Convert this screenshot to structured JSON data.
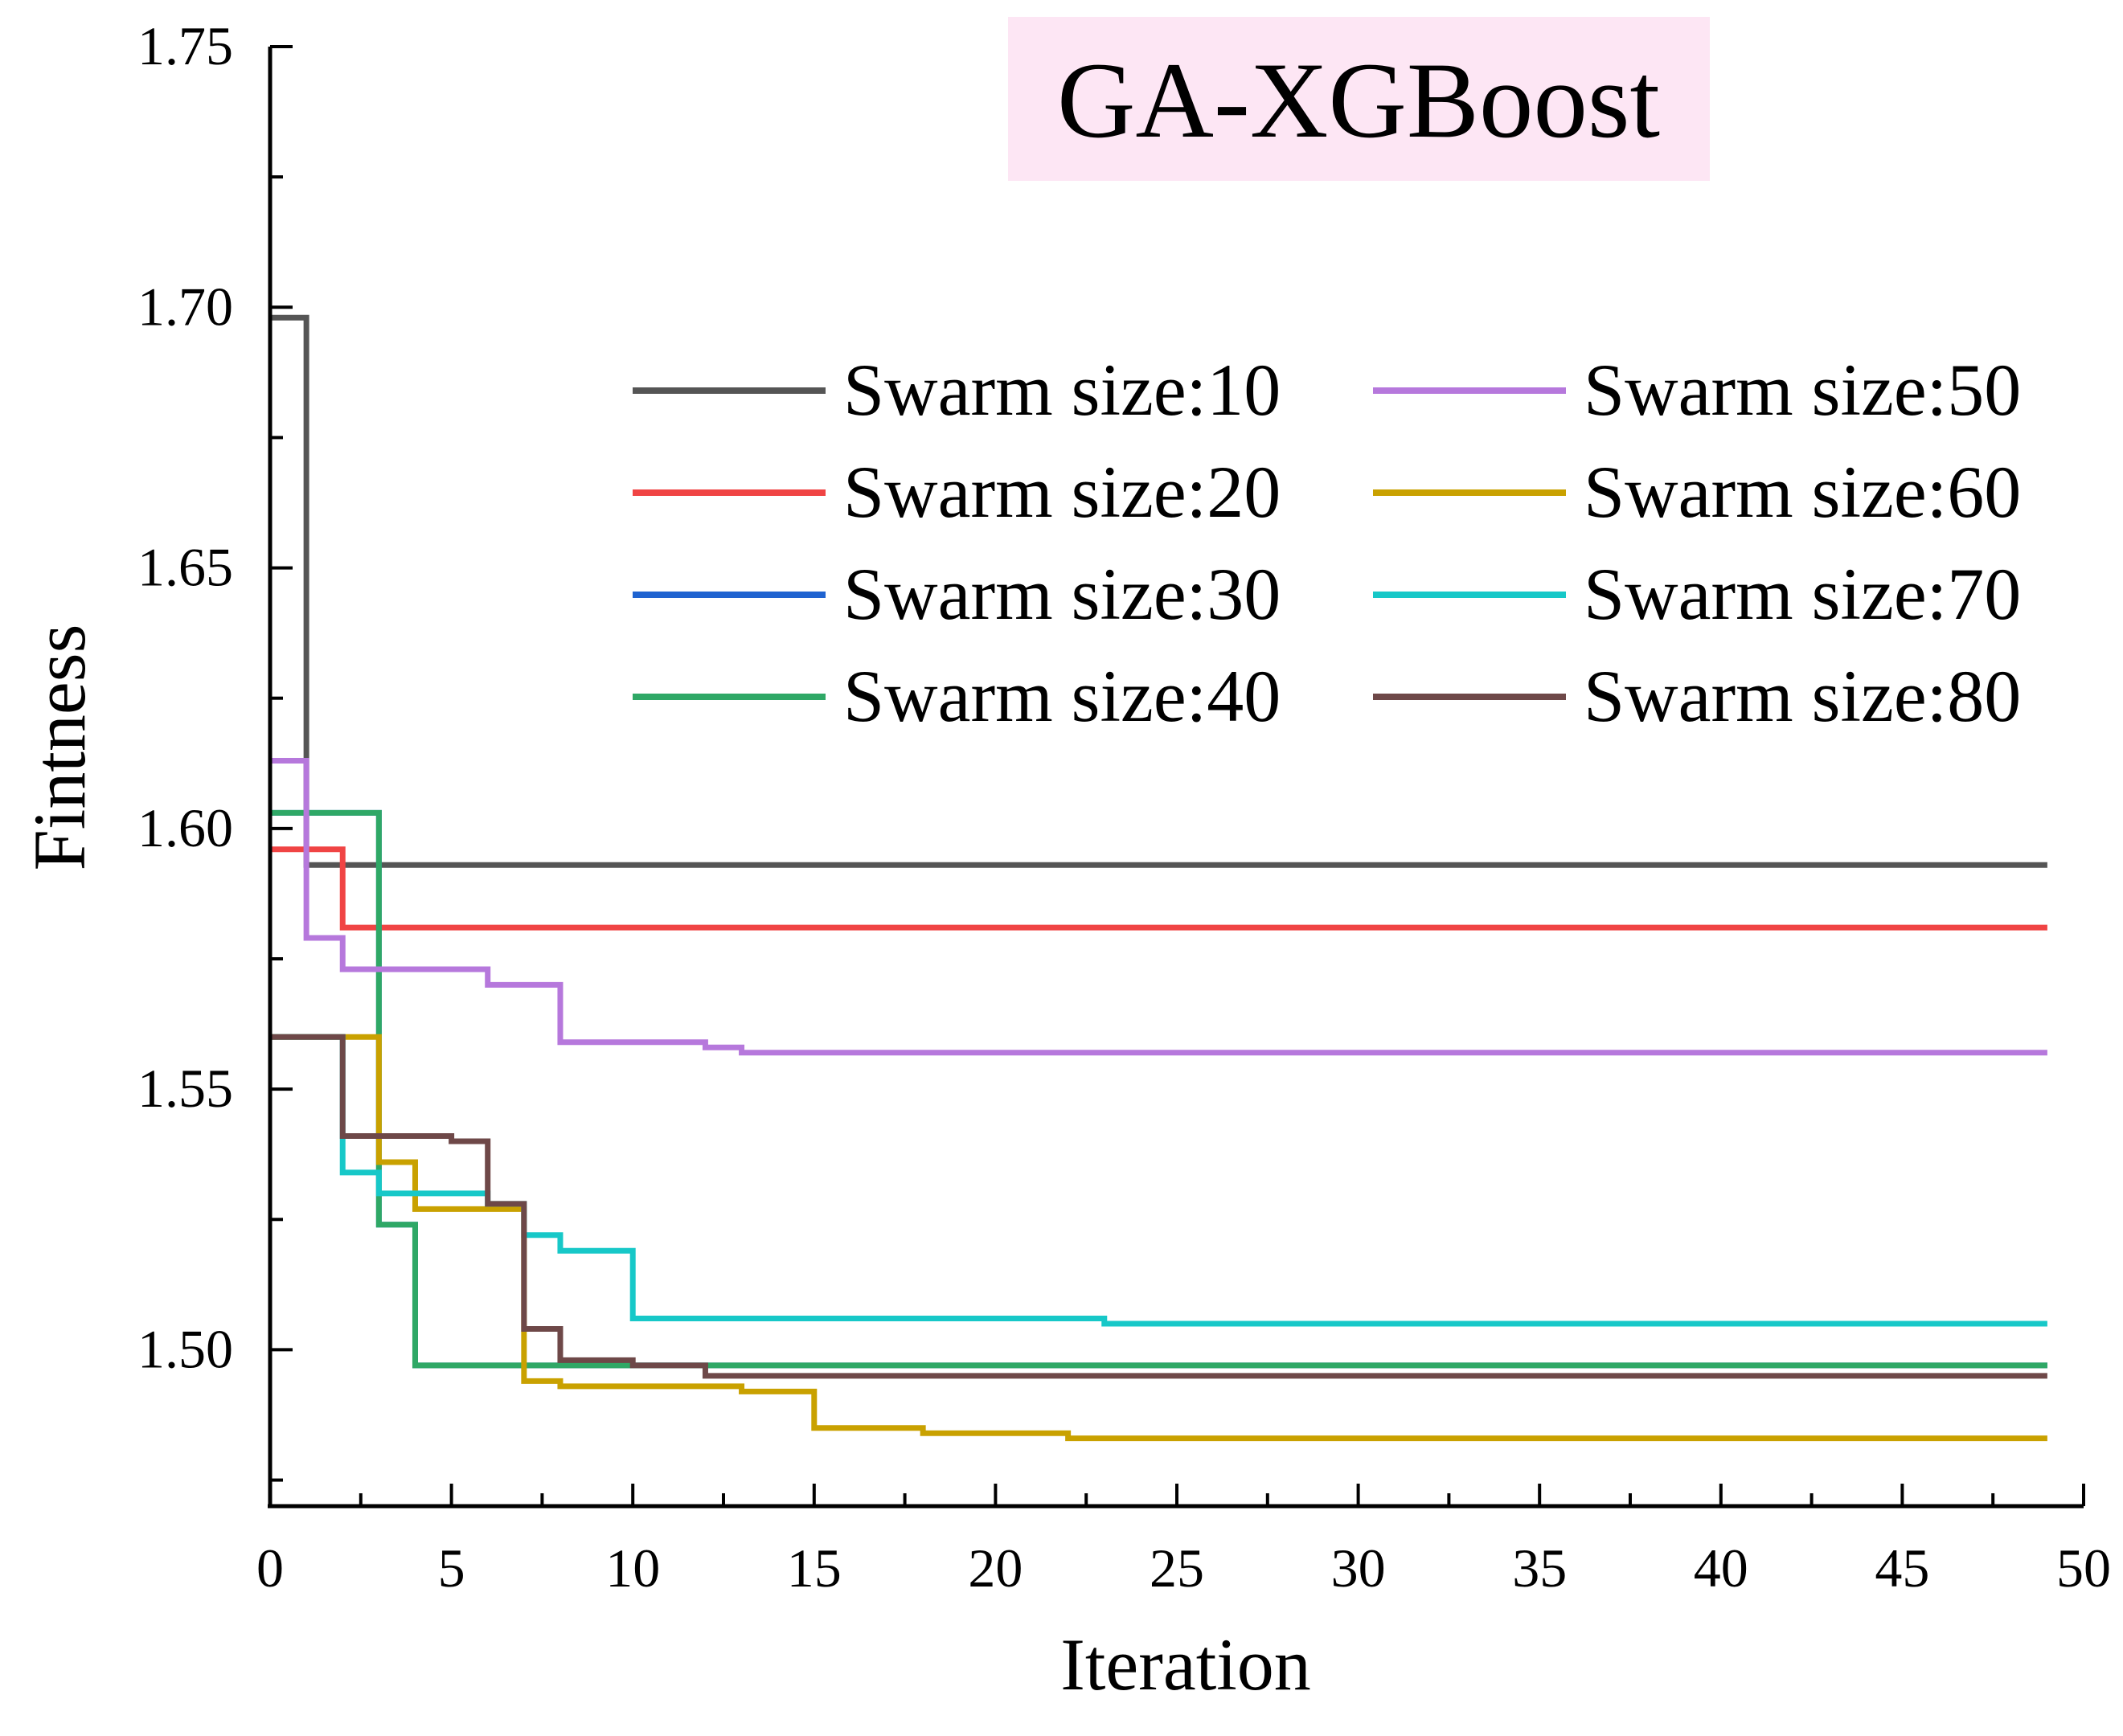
{
  "chart_data": {
    "type": "line",
    "step": true,
    "title": "GA-XGBoost",
    "xlabel": "Iteration",
    "ylabel": "Fintness",
    "xlim": [
      0,
      50
    ],
    "ylim": [
      1.47,
      1.75
    ],
    "x_ticks": [
      "0",
      "5",
      "10",
      "15",
      "20",
      "25",
      "30",
      "35",
      "40",
      "45",
      "50"
    ],
    "y_ticks": [
      "1.50",
      "1.55",
      "1.60",
      "1.65",
      "1.70",
      "1.75"
    ],
    "title_background": "#fde6f4",
    "legend_position": "upper-right",
    "series": [
      {
        "name": "Swarm size:10",
        "color": "#555555",
        "x": [
          0,
          1,
          49
        ],
        "y": [
          1.698,
          1.593,
          1.593
        ]
      },
      {
        "name": "Swarm size:20",
        "color": "#f04444",
        "x": [
          0,
          2,
          49
        ],
        "y": [
          1.596,
          1.581,
          1.581
        ]
      },
      {
        "name": "Swarm size:30",
        "color": "#1f63d0",
        "x": [
          0,
          3,
          4,
          49
        ],
        "y": [
          1.603,
          1.524,
          1.497,
          1.497
        ]
      },
      {
        "name": "Swarm size:40",
        "color": "#2fa866",
        "x": [
          0,
          3,
          4,
          49
        ],
        "y": [
          1.603,
          1.524,
          1.497,
          1.497
        ]
      },
      {
        "name": "Swarm size:50",
        "color": "#b678dc",
        "x": [
          0,
          1,
          2,
          6,
          8,
          10,
          12,
          13,
          49
        ],
        "y": [
          1.613,
          1.579,
          1.573,
          1.57,
          1.559,
          1.559,
          1.558,
          1.557,
          1.557
        ]
      },
      {
        "name": "Swarm size:60",
        "color": "#c9a100",
        "x": [
          0,
          3,
          4,
          7,
          8,
          13,
          15,
          18,
          22,
          49
        ],
        "y": [
          1.56,
          1.536,
          1.527,
          1.494,
          1.493,
          1.492,
          1.485,
          1.484,
          1.483,
          1.483
        ]
      },
      {
        "name": "Swarm size:70",
        "color": "#17c8c8",
        "x": [
          0,
          2,
          3,
          6,
          7,
          8,
          10,
          23,
          25,
          49
        ],
        "y": [
          1.56,
          1.534,
          1.53,
          1.528,
          1.522,
          1.519,
          1.506,
          1.505,
          1.505,
          1.505
        ]
      },
      {
        "name": "Swarm size:80",
        "color": "#6e4848",
        "x": [
          0,
          2,
          5,
          6,
          7,
          8,
          10,
          12,
          49
        ],
        "y": [
          1.56,
          1.541,
          1.54,
          1.528,
          1.504,
          1.498,
          1.497,
          1.495,
          1.495
        ]
      }
    ]
  }
}
